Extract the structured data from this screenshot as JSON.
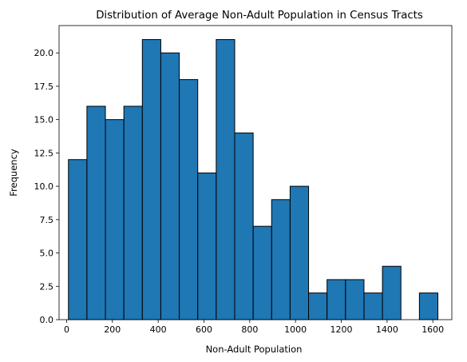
{
  "chart_data": {
    "type": "bar",
    "title": "Distribution of Average Non-Adult Population in Census Tracts",
    "xlabel": "Non-Adult Population",
    "ylabel": "Frequency",
    "xlim": [
      -33,
      1683
    ],
    "ylim": [
      0,
      22.05
    ],
    "bin_edges": [
      8,
      88.7,
      169.4,
      250.1,
      330.8,
      411.5,
      492.2,
      572.9,
      653.6,
      734.3,
      815,
      895.7,
      976.4,
      1057.1,
      1137.8,
      1218.5,
      1299.2,
      1379.9,
      1460.6,
      1541.3,
      1622
    ],
    "values": [
      12,
      16,
      15,
      16,
      21,
      20,
      18,
      11,
      21,
      14,
      7,
      9,
      10,
      2,
      3,
      3,
      2,
      4,
      0,
      2
    ],
    "x_ticks": [
      0,
      200,
      400,
      600,
      800,
      1000,
      1200,
      1400,
      1600
    ],
    "x_tick_labels": [
      "0",
      "200",
      "400",
      "600",
      "800",
      "1000",
      "1200",
      "1400",
      "1600"
    ],
    "y_ticks": [
      0,
      2.5,
      5,
      7.5,
      10,
      12.5,
      15,
      17.5,
      20
    ],
    "y_tick_labels": [
      "0.0",
      "2.5",
      "5.0",
      "7.5",
      "10.0",
      "12.5",
      "15.0",
      "17.5",
      "20.0"
    ],
    "bar_color": "#1f77b4",
    "edge_color": "#000000",
    "grid": false,
    "legend": "none"
  }
}
